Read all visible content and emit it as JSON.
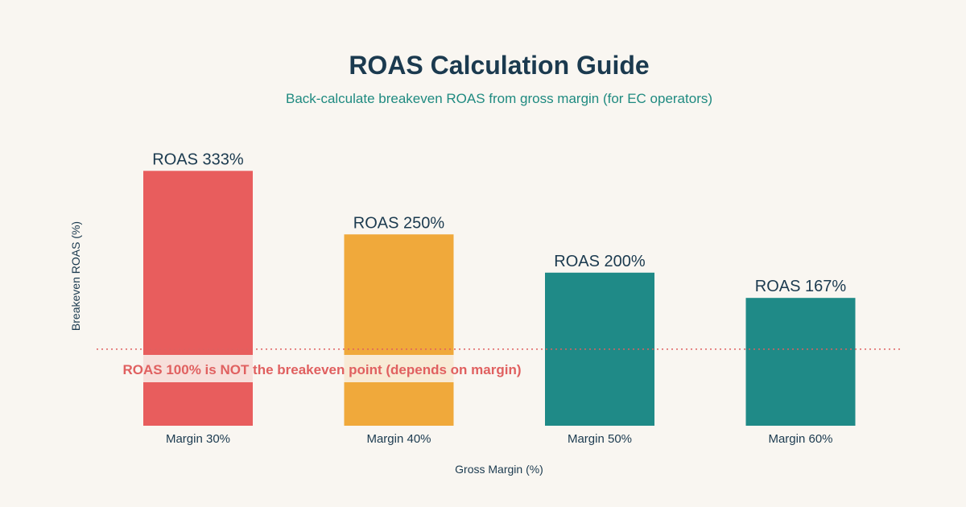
{
  "chart_data": {
    "type": "bar",
    "title": "ROAS Calculation Guide",
    "subtitle": "Back-calculate breakeven ROAS from gross margin (for EC operators)",
    "xlabel": "Gross Margin (%)",
    "ylabel": "Breakeven ROAS (%)",
    "categories": [
      "Margin 30%",
      "Margin 40%",
      "Margin 50%",
      "Margin 60%"
    ],
    "values": [
      333,
      250,
      200,
      167
    ],
    "data_labels": [
      "ROAS 333%",
      "ROAS 250%",
      "ROAS 200%",
      "ROAS 167%"
    ],
    "colors": [
      "#e85d5d",
      "#f0a93b",
      "#1f8a87",
      "#1f8a87"
    ],
    "ylim": [
      0,
      350
    ],
    "grid": false,
    "reference_line": {
      "value": 100,
      "color": "#e06060",
      "label": "ROAS 100% is NOT the breakeven point (depends on margin)"
    },
    "title_color": "#1b3a4f",
    "subtitle_color": "#1f8a80"
  }
}
